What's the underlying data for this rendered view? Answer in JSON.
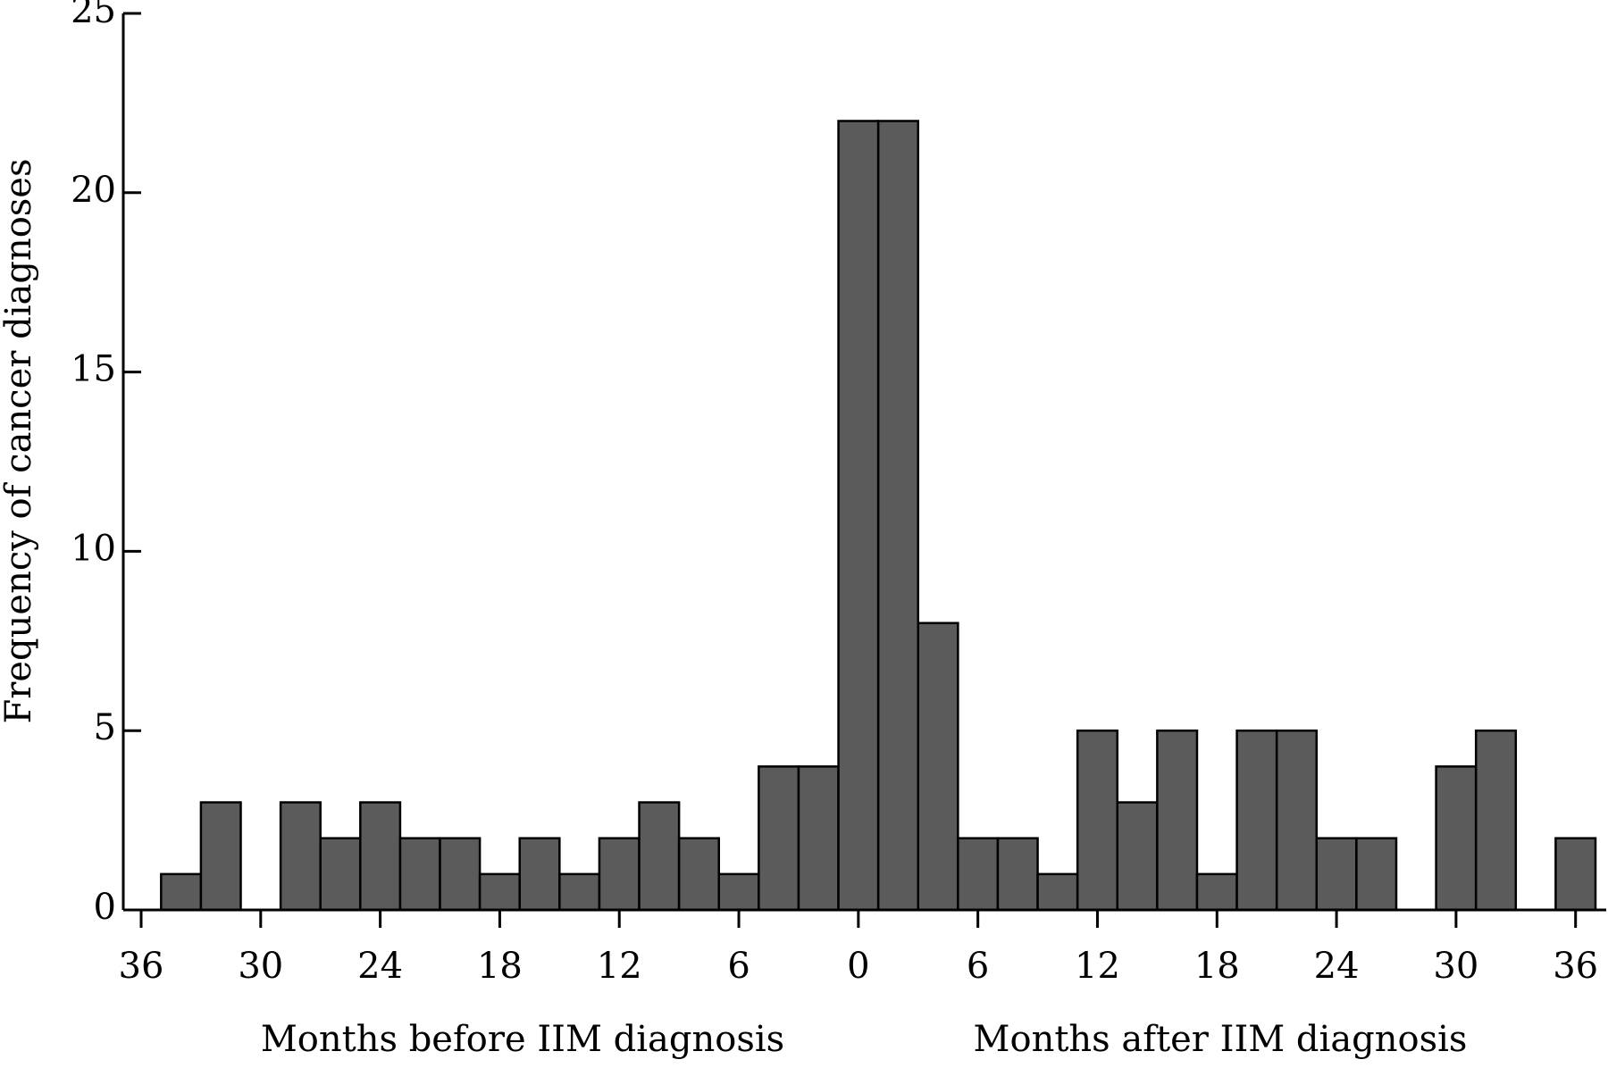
{
  "chart_data": {
    "type": "histogram",
    "ylabel": "Frequency of cancer diagnoses",
    "xlabels": [
      "Months before IIM diagnosis",
      "Months after IIM diagnosis"
    ],
    "bins": [
      -35,
      -33,
      -31,
      -29,
      -27,
      -25,
      -23,
      -21,
      -19,
      -17,
      -15,
      -13,
      -11,
      -9,
      -7,
      -5,
      -3,
      -1,
      1,
      3,
      5,
      7,
      9,
      11,
      13,
      15,
      17,
      19,
      21,
      23,
      25,
      27,
      29,
      31,
      33,
      35,
      37
    ],
    "values": [
      1,
      3,
      0,
      3,
      2,
      3,
      2,
      2,
      1,
      2,
      1,
      2,
      3,
      2,
      1,
      4,
      4,
      22,
      22,
      8,
      2,
      2,
      1,
      5,
      3,
      5,
      1,
      5,
      5,
      2,
      2,
      0,
      4,
      5,
      0,
      2
    ],
    "color": "#5b5b5b",
    "xlim": [
      -36,
      37
    ],
    "xticks": [
      {
        "value": -36,
        "label": "36"
      },
      {
        "value": -30,
        "label": "30"
      },
      {
        "value": -24,
        "label": "24"
      },
      {
        "value": -18,
        "label": "18"
      },
      {
        "value": -12,
        "label": "12"
      },
      {
        "value": -6,
        "label": "6"
      },
      0,
      6,
      12,
      18,
      24,
      30,
      36
    ],
    "ylim": [
      0,
      25
    ],
    "yticks": [
      0,
      5,
      10,
      15,
      20,
      25
    ],
    "grid": false
  }
}
